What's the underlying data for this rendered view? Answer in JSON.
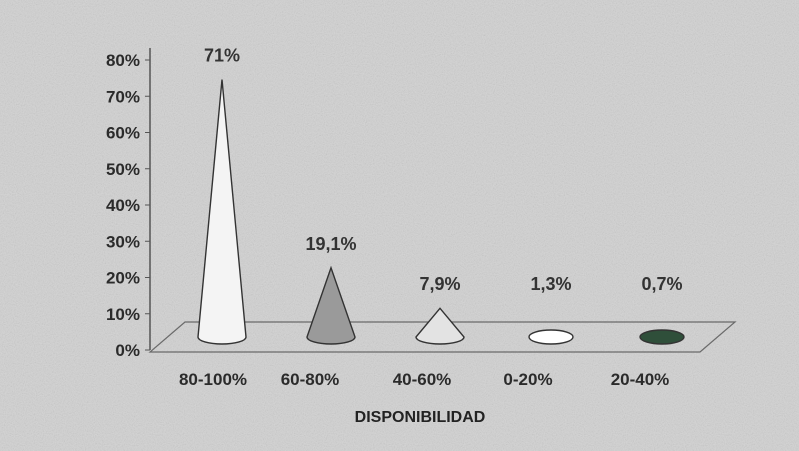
{
  "chart_data": {
    "type": "bar",
    "shape": "cone-3d",
    "title": "",
    "xlabel": "DISPONIBILIDAD",
    "ylabel": "",
    "categories": [
      "80-100%",
      "60-80%",
      "40-60%",
      "0-20%",
      "20-40%"
    ],
    "values": [
      71,
      19.1,
      7.9,
      1.3,
      0.7
    ],
    "data_labels": [
      "71%",
      "19,1%",
      "7,9%",
      "1,3%",
      "0,7%"
    ],
    "yticks": [
      "0%",
      "10%",
      "20%",
      "30%",
      "40%",
      "50%",
      "60%",
      "70%",
      "80%"
    ],
    "ylim": [
      0,
      80
    ],
    "grid": false,
    "legend": "none",
    "colors": {
      "background": "#d2d2d2",
      "cone_fills": [
        "#f4f4f4",
        "#9a9a9a",
        "#e3e3e3",
        "#ffffff",
        "#2f4f3a"
      ]
    }
  }
}
